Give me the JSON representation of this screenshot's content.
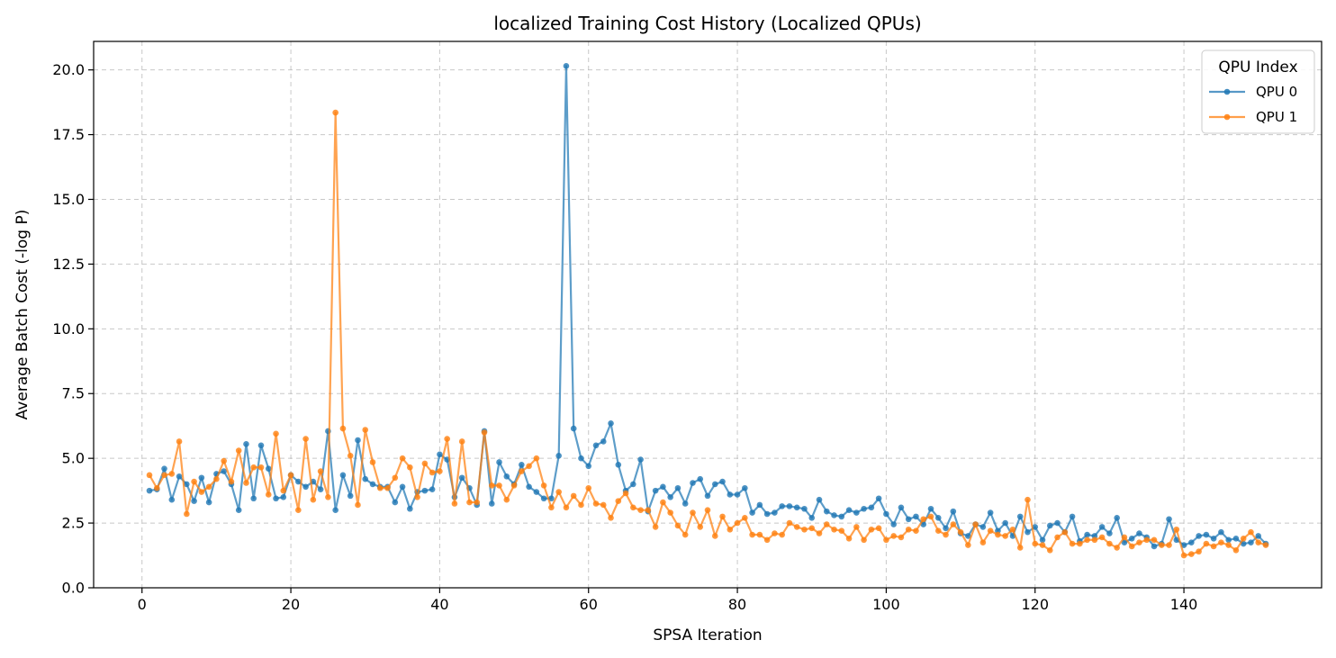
{
  "chart_data": {
    "type": "line",
    "title": "localized Training Cost History (Localized QPUs)",
    "xlabel": "SPSA Iteration",
    "ylabel": "Average Batch Cost (-log P)",
    "xlim": [
      -6.5,
      158.5
    ],
    "ylim": [
      0,
      21.1
    ],
    "x_ticks": [
      0,
      20,
      40,
      60,
      80,
      100,
      120,
      140
    ],
    "x_tick_labels": [
      "0",
      "20",
      "40",
      "60",
      "80",
      "100",
      "120",
      "140"
    ],
    "y_ticks": [
      0,
      2.5,
      5,
      7.5,
      10,
      12.5,
      15,
      17.5,
      20
    ],
    "y_tick_labels": [
      "0.0",
      "2.5",
      "5.0",
      "7.5",
      "10.0",
      "12.5",
      "15.0",
      "17.5",
      "20.0"
    ],
    "grid": true,
    "legend_title": "QPU Index",
    "legend_position": "top-right",
    "x": [
      1,
      2,
      3,
      4,
      5,
      6,
      7,
      8,
      9,
      10,
      11,
      12,
      13,
      14,
      15,
      16,
      17,
      18,
      19,
      20,
      21,
      22,
      23,
      24,
      25,
      26,
      27,
      28,
      29,
      30,
      31,
      32,
      33,
      34,
      35,
      36,
      37,
      38,
      39,
      40,
      41,
      42,
      43,
      44,
      45,
      46,
      47,
      48,
      49,
      50,
      51,
      52,
      53,
      54,
      55,
      56,
      57,
      58,
      59,
      60,
      61,
      62,
      63,
      64,
      65,
      66,
      67,
      68,
      69,
      70,
      71,
      72,
      73,
      74,
      75,
      76,
      77,
      78,
      79,
      80,
      81,
      82,
      83,
      84,
      85,
      86,
      87,
      88,
      89,
      90,
      91,
      92,
      93,
      94,
      95,
      96,
      97,
      98,
      99,
      100,
      101,
      102,
      103,
      104,
      105,
      106,
      107,
      108,
      109,
      110,
      111,
      112,
      113,
      114,
      115,
      116,
      117,
      118,
      119,
      120,
      121,
      122,
      123,
      124,
      125,
      126,
      127,
      128,
      129,
      130,
      131,
      132,
      133,
      134,
      135,
      136,
      137,
      138,
      139,
      140,
      141,
      142,
      143,
      144,
      145,
      146,
      147,
      148,
      149,
      150,
      151
    ],
    "series": [
      {
        "name": "QPU 0",
        "color": "#1f77b4",
        "values": [
          3.75,
          3.8,
          4.6,
          3.4,
          4.3,
          4.0,
          3.35,
          4.25,
          3.3,
          4.4,
          4.5,
          4.0,
          3.0,
          5.55,
          3.45,
          5.5,
          4.6,
          3.45,
          3.5,
          4.35,
          4.1,
          3.9,
          4.1,
          3.8,
          6.05,
          3.0,
          4.35,
          3.55,
          5.7,
          4.2,
          4.0,
          3.9,
          3.9,
          3.3,
          3.9,
          3.05,
          3.7,
          3.75,
          3.8,
          5.15,
          4.95,
          3.5,
          4.25,
          3.85,
          3.2,
          6.05,
          3.25,
          4.85,
          4.3,
          4.0,
          4.75,
          3.9,
          3.7,
          3.45,
          3.45,
          5.1,
          20.15,
          6.15,
          5.0,
          4.7,
          5.5,
          5.65,
          6.35,
          4.75,
          3.75,
          4.0,
          4.95,
          2.95,
          3.75,
          3.9,
          3.5,
          3.85,
          3.25,
          4.05,
          4.2,
          3.55,
          4.0,
          4.1,
          3.6,
          3.6,
          3.85,
          2.9,
          3.2,
          2.85,
          2.9,
          3.15,
          3.15,
          3.1,
          3.05,
          2.7,
          3.4,
          2.95,
          2.8,
          2.75,
          3.0,
          2.9,
          3.05,
          3.1,
          3.45,
          2.85,
          2.45,
          3.1,
          2.65,
          2.75,
          2.45,
          3.05,
          2.7,
          2.3,
          2.95,
          2.1,
          2.0,
          2.45,
          2.35,
          2.9,
          2.2,
          2.5,
          2.0,
          2.75,
          2.15,
          2.35,
          1.85,
          2.4,
          2.5,
          2.15,
          2.75,
          1.8,
          2.05,
          2.0,
          2.35,
          2.1,
          2.7,
          1.75,
          1.9,
          2.1,
          1.95,
          1.6,
          1.7,
          2.65,
          1.85,
          1.65,
          1.75,
          2.0,
          2.05,
          1.9,
          2.15,
          1.85,
          1.9,
          1.7,
          1.75,
          2.0,
          1.7
        ]
      },
      {
        "name": "QPU 1",
        "color": "#ff7f0e",
        "values": [
          4.35,
          3.85,
          4.35,
          4.4,
          5.65,
          2.85,
          4.1,
          3.7,
          3.9,
          4.2,
          4.9,
          4.1,
          5.3,
          4.05,
          4.65,
          4.65,
          3.6,
          5.95,
          3.75,
          4.35,
          3.0,
          5.75,
          3.4,
          4.5,
          3.5,
          18.35,
          6.15,
          5.1,
          3.2,
          6.1,
          4.85,
          3.85,
          3.85,
          4.25,
          5.0,
          4.65,
          3.5,
          4.8,
          4.45,
          4.5,
          5.75,
          3.25,
          5.65,
          3.3,
          3.3,
          6.0,
          3.95,
          3.95,
          3.4,
          3.95,
          4.5,
          4.7,
          5.0,
          3.95,
          3.1,
          3.7,
          3.1,
          3.55,
          3.2,
          3.85,
          3.25,
          3.2,
          2.7,
          3.35,
          3.65,
          3.1,
          3.0,
          3.0,
          2.35,
          3.3,
          2.9,
          2.4,
          2.05,
          2.9,
          2.35,
          3.0,
          2.0,
          2.75,
          2.25,
          2.5,
          2.7,
          2.05,
          2.05,
          1.85,
          2.1,
          2.05,
          2.5,
          2.35,
          2.25,
          2.3,
          2.1,
          2.45,
          2.25,
          2.2,
          1.9,
          2.35,
          1.85,
          2.25,
          2.3,
          1.85,
          2.0,
          1.95,
          2.25,
          2.2,
          2.65,
          2.75,
          2.2,
          2.05,
          2.45,
          2.15,
          1.65,
          2.45,
          1.75,
          2.2,
          2.05,
          2.0,
          2.25,
          1.55,
          3.4,
          1.7,
          1.65,
          1.45,
          1.95,
          2.15,
          1.7,
          1.7,
          1.85,
          1.85,
          1.95,
          1.7,
          1.55,
          1.95,
          1.6,
          1.75,
          1.85,
          1.85,
          1.65,
          1.65,
          2.25,
          1.25,
          1.3,
          1.4,
          1.7,
          1.6,
          1.75,
          1.65,
          1.45,
          1.9,
          2.15,
          1.75,
          1.65
        ]
      }
    ]
  }
}
